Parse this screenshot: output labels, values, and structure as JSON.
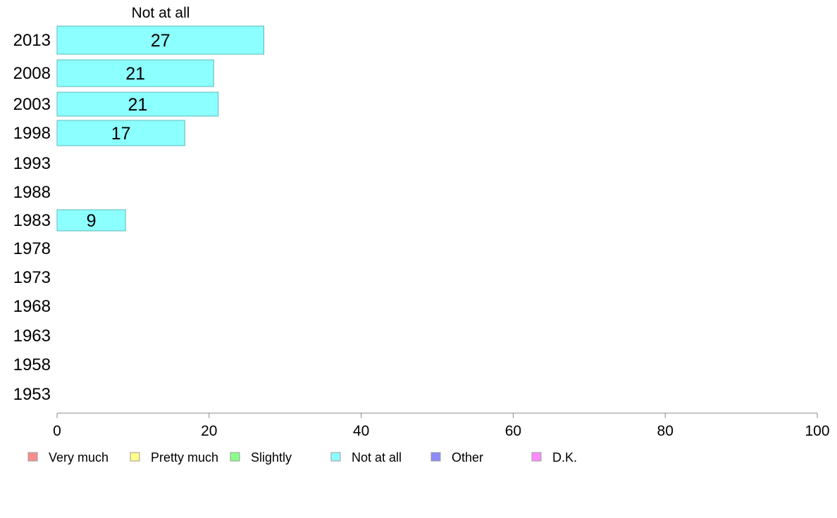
{
  "chart_data": {
    "type": "bar",
    "orientation": "horizontal",
    "title": "Not at all",
    "categories": [
      "2013",
      "2008",
      "2003",
      "1998",
      "1993",
      "1988",
      "1983",
      "1978",
      "1973",
      "1968",
      "1963",
      "1958",
      "1953"
    ],
    "series": [
      {
        "name": "Not at all",
        "values": [
          27.2,
          20.6,
          21.2,
          16.8,
          null,
          null,
          9.0,
          null,
          null,
          null,
          null,
          null,
          null
        ],
        "data_labels": [
          "27",
          "21",
          "21",
          "17",
          "",
          "",
          "9",
          "",
          "",
          "",
          "",
          "",
          ""
        ]
      }
    ],
    "xlim": [
      0,
      100
    ],
    "xticks": [
      "0",
      "20",
      "40",
      "60",
      "80",
      "100"
    ],
    "xlabel": "",
    "ylabel": "",
    "grid": false,
    "legend": {
      "placement": "bottom",
      "entries": [
        {
          "label": "Very much",
          "color": "#ff8c8c"
        },
        {
          "label": "Pretty much",
          "color": "#ffff8c"
        },
        {
          "label": "Slightly",
          "color": "#8cff8c"
        },
        {
          "label": "Not at all",
          "color": "#8cffff"
        },
        {
          "label": "Other",
          "color": "#8c8cff"
        },
        {
          "label": "D.K.",
          "color": "#ff8cff"
        }
      ]
    },
    "bar_color": "#8cffff",
    "bar_edge_color": "#5fb8b8",
    "axis_color": "#888888"
  }
}
